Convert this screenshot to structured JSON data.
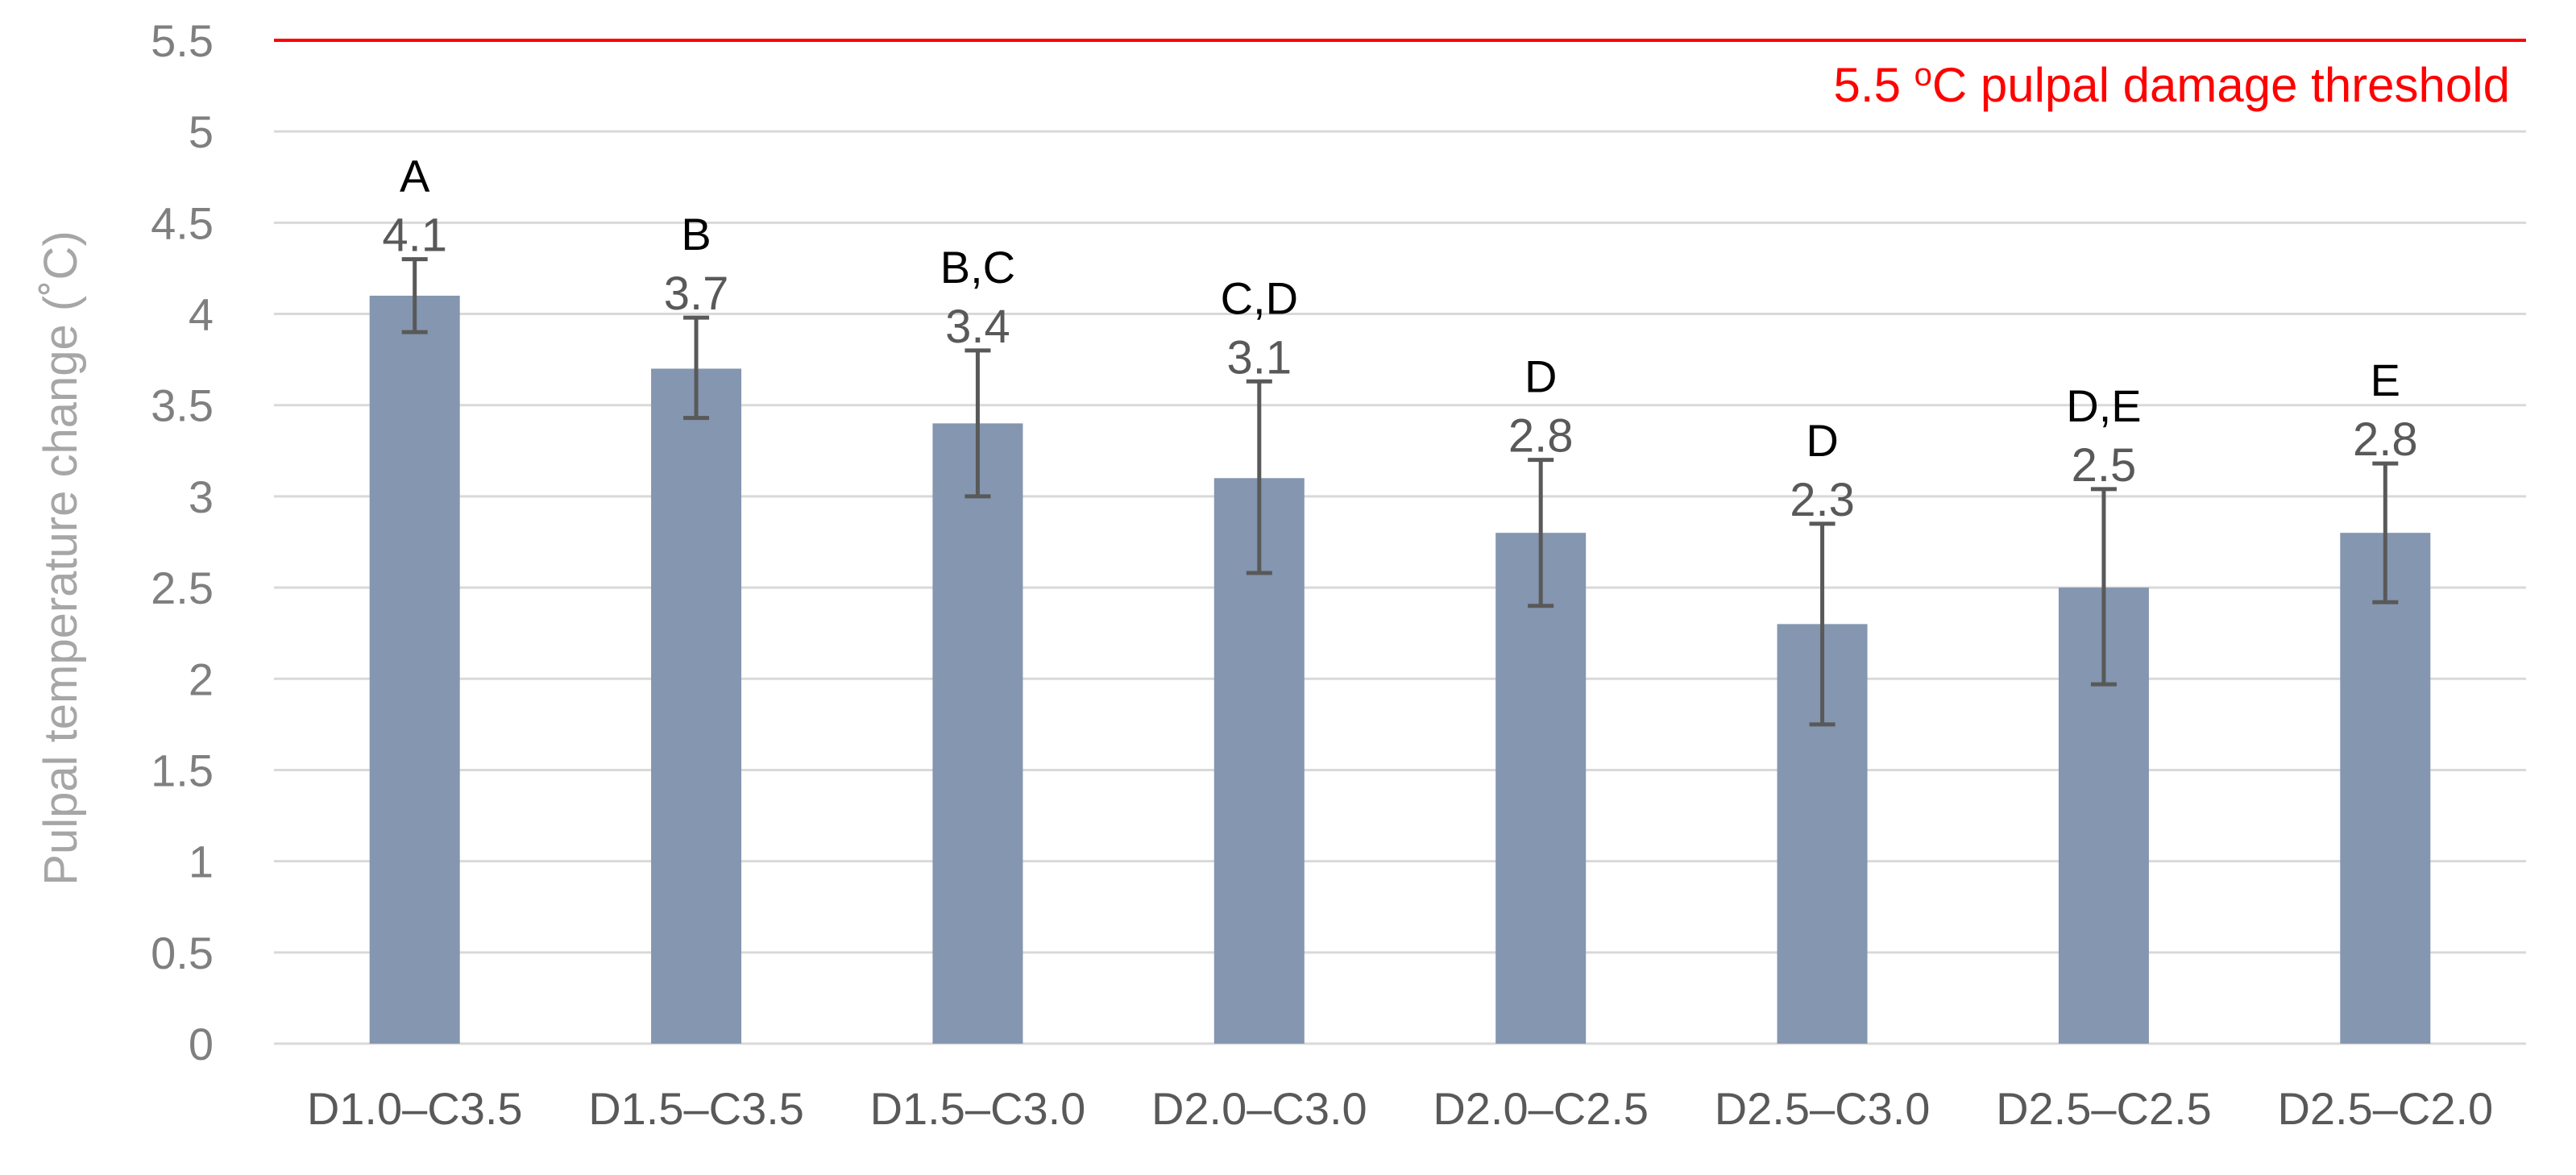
{
  "chart_data": {
    "type": "bar",
    "ylabel": "Pulpal temperature change (˚C)",
    "xlabel": "",
    "ylim": [
      0,
      5.5
    ],
    "yticks": [
      "0",
      "0.5",
      "1",
      "1.5",
      "2",
      "2.5",
      "3",
      "3.5",
      "4",
      "4.5",
      "5",
      "5.5"
    ],
    "grid": true,
    "categories": [
      "D1.0–C3.5",
      "D1.5–C3.5",
      "D1.5–C3.0",
      "D2.0–C3.0",
      "D2.0–C2.5",
      "D2.5–C3.0",
      "D2.5–C2.5",
      "D2.5–C2.0"
    ],
    "values": [
      4.1,
      3.7,
      3.4,
      3.1,
      2.8,
      2.3,
      2.5,
      2.8
    ],
    "value_labels": [
      "4.1",
      "3.7",
      "3.4",
      "3.1",
      "2.8",
      "2.3",
      "2.5",
      "2.8"
    ],
    "error_low": [
      3.9,
      3.43,
      3.0,
      2.58,
      2.4,
      1.75,
      1.97,
      2.42
    ],
    "error_high": [
      4.3,
      3.98,
      3.8,
      3.63,
      3.2,
      2.85,
      3.04,
      3.18
    ],
    "significance_labels": [
      "A",
      "B",
      "B,C",
      "C,D",
      "D",
      "D",
      "D,E",
      "E"
    ],
    "threshold": {
      "value": 5.5,
      "label_prefix": "5.5 ",
      "label_superscript": "o",
      "label_suffix": "C pulpal damage threshold"
    },
    "colors": {
      "bar": "#8496b0",
      "errorbar": "#595959",
      "threshold": "#ff0000",
      "grid": "#d9d9d9"
    }
  }
}
